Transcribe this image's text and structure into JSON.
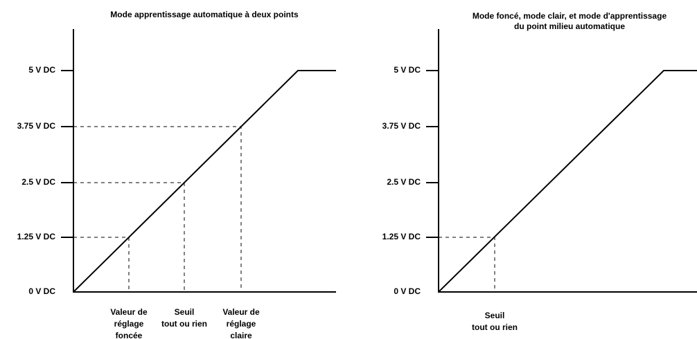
{
  "left_chart": {
    "title": "Mode apprentissage automatique à deux points",
    "y_labels": [
      "5 V DC",
      "3.75 V DC",
      "2.5 V DC",
      "1.25 V DC",
      "0 V DC"
    ],
    "x_labels": [
      [
        "Valeur de",
        "réglage",
        "foncée"
      ],
      [
        "Seuil",
        "tout ou rien"
      ],
      [
        "Valeur de",
        "réglage",
        "claire"
      ]
    ]
  },
  "right_chart": {
    "title": [
      "Mode foncé, mode clair, et mode d'apprentissage",
      "du point milieu automatique"
    ],
    "y_labels": [
      "5 V DC",
      "3.75 V DC",
      "2.5 V DC",
      "1.25 V DC",
      "0 V DC"
    ],
    "x_labels": [
      [
        "Seuil",
        "tout ou rien"
      ]
    ]
  }
}
